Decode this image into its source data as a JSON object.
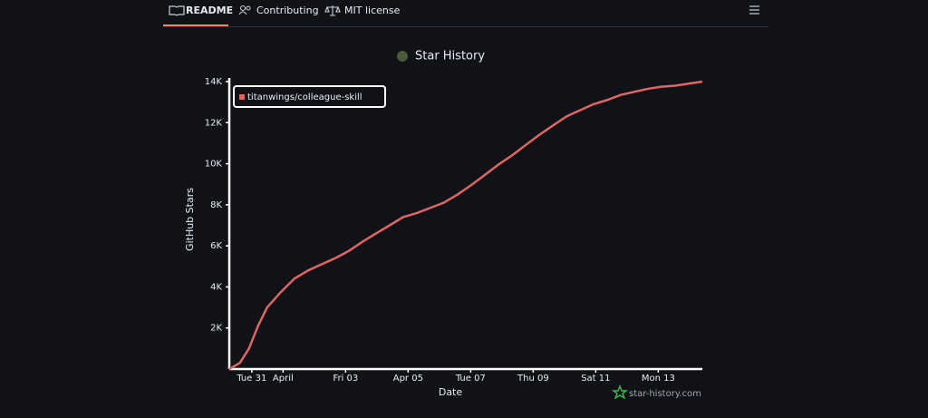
{
  "tabs": [
    "README",
    "Contributing",
    "MIT license"
  ],
  "watermark": "star-history.com",
  "chart_data": {
    "type": "line",
    "title": "Star History",
    "x_label": "Date",
    "y_label": "GitHub Stars",
    "x": [
      30.28,
      30.62,
      30.91,
      31.2,
      31.49,
      31.93,
      32.36,
      32.8,
      33.23,
      33.67,
      34.1,
      34.54,
      34.97,
      35.41,
      35.84,
      36.28,
      36.71,
      37.14,
      37.58,
      38.01,
      38.45,
      38.88,
      39.32,
      39.75,
      40.19,
      40.62,
      41.06,
      41.49,
      41.93,
      42.36,
      42.8,
      43.23,
      43.67,
      44.1,
      44.54,
      44.97,
      45.41
    ],
    "series": [
      {
        "name": "titanwings/colleague-skill",
        "color": "#e06666",
        "values": [
          0,
          300,
          1000,
          2100,
          3000,
          3750,
          4400,
          4800,
          5100,
          5400,
          5750,
          6200,
          6600,
          7000,
          7400,
          7600,
          7850,
          8100,
          8500,
          8950,
          9450,
          9950,
          10400,
          10900,
          11400,
          11850,
          12300,
          12600,
          12900,
          13100,
          13350,
          13500,
          13650,
          13750,
          13800,
          13900,
          14000
        ]
      }
    ],
    "xlim": [
      30.28,
      45.41
    ],
    "xticks": [
      {
        "value": 31,
        "label": "Tue 31"
      },
      {
        "value": 32,
        "label": "April"
      },
      {
        "value": 34,
        "label": "Fri 03"
      },
      {
        "value": 36,
        "label": "Apr 05"
      },
      {
        "value": 38,
        "label": "Tue 07"
      },
      {
        "value": 40,
        "label": "Thu 09"
      },
      {
        "value": 42,
        "label": "Sat 11"
      },
      {
        "value": 44,
        "label": "Mon 13"
      }
    ],
    "ylim": [
      0,
      14000
    ],
    "yticks": [
      {
        "value": 2000,
        "label": "2K"
      },
      {
        "value": 4000,
        "label": "4K"
      },
      {
        "value": 6000,
        "label": "6K"
      },
      {
        "value": 8000,
        "label": "8K"
      },
      {
        "value": 10000,
        "label": "10K"
      },
      {
        "value": 12000,
        "label": "12K"
      },
      {
        "value": 14000,
        "label": "14K"
      }
    ],
    "legend": "top-left"
  }
}
